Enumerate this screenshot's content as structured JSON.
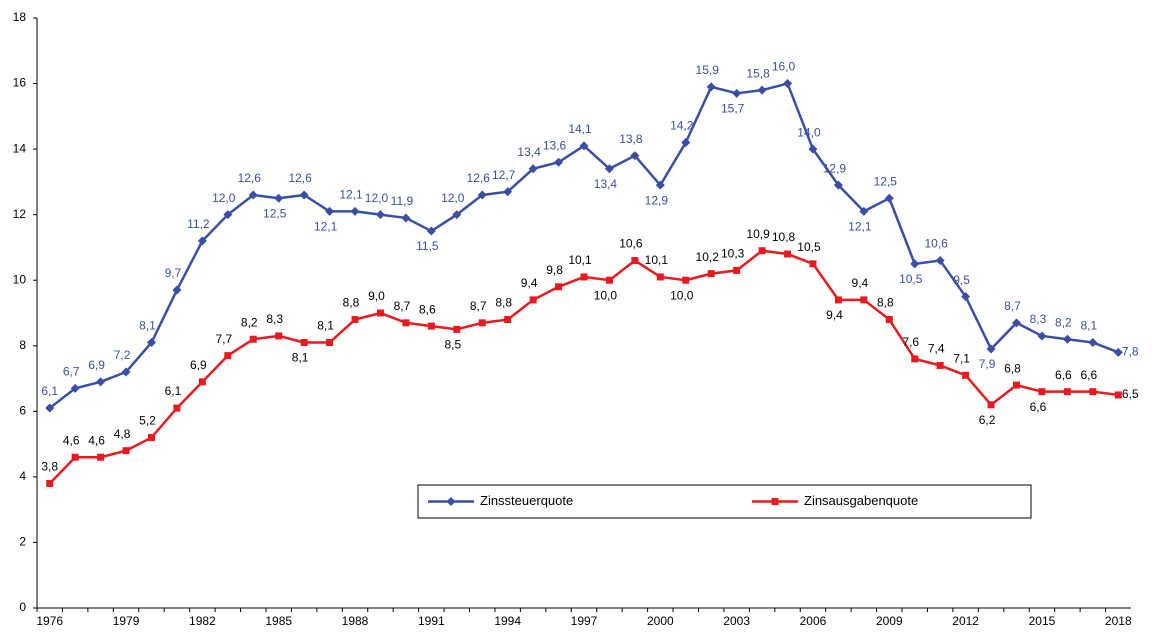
{
  "chart_data": {
    "type": "line",
    "categories": [
      "1976",
      null,
      null,
      "1979",
      null,
      null,
      "1982",
      null,
      null,
      "1985",
      null,
      null,
      "1988",
      null,
      null,
      "1991",
      null,
      null,
      "1994",
      null,
      null,
      "1997",
      null,
      null,
      "2000",
      null,
      null,
      "2003",
      null,
      null,
      "2006",
      null,
      null,
      "2009",
      null,
      null,
      "2012",
      null,
      null,
      "2015",
      null,
      null,
      "2018"
    ],
    "series": [
      {
        "name": "Zinssteuerquote",
        "color": "#3a4fa3",
        "marker": "diamond",
        "values": [
          6.1,
          6.7,
          6.9,
          7.2,
          8.1,
          9.7,
          11.2,
          12.0,
          12.6,
          12.5,
          12.6,
          12.1,
          12.1,
          12.0,
          11.9,
          11.5,
          12.0,
          12.6,
          12.7,
          13.4,
          13.6,
          14.1,
          13.4,
          13.8,
          12.9,
          14.2,
          15.9,
          15.7,
          15.8,
          16.0,
          14.0,
          12.9,
          12.1,
          12.5,
          10.5,
          10.6,
          9.5,
          7.9,
          8.7,
          8.3,
          8.2,
          8.1,
          7.8
        ],
        "value_labels": [
          "6,1",
          "6,7",
          "6,9",
          "7,2",
          "8,1",
          "9,7",
          "11,2",
          "12,0",
          "12,6",
          "12,5",
          "12,6",
          "12,1",
          "12,1",
          "12,0",
          "11,9",
          "11,5",
          "12,0",
          "12,6",
          "12,7",
          "13,4",
          "13,6",
          "14,1",
          "13,4",
          "13,8",
          "12,9",
          "14,2",
          "15,9",
          "15,7",
          "15,8",
          "16,0",
          "14,0",
          "12,9",
          "12,1",
          "12,5",
          "10,5",
          "10,6",
          "9,5",
          "7,9",
          "8,7",
          "8,3",
          "8,2",
          "8,1",
          "7,8"
        ]
      },
      {
        "name": "Zinsausgabenquote",
        "color": "#e8191f",
        "marker": "square",
        "values": [
          3.8,
          4.6,
          4.6,
          4.8,
          5.2,
          6.1,
          6.9,
          7.7,
          8.2,
          8.3,
          8.1,
          8.1,
          8.8,
          9.0,
          8.7,
          8.6,
          8.5,
          8.7,
          8.8,
          9.4,
          9.8,
          10.1,
          10.0,
          10.6,
          10.1,
          10.0,
          10.2,
          10.3,
          10.9,
          10.8,
          10.5,
          9.4,
          9.4,
          8.8,
          7.6,
          7.4,
          7.1,
          6.2,
          6.8,
          6.6,
          6.6,
          6.6,
          6.5
        ],
        "value_labels": [
          "3,8",
          "4,6",
          "4,6",
          "4,8",
          "5,2",
          "6,1",
          "6,9",
          "7,7",
          "8,2",
          "8,3",
          "8,1",
          "8,1",
          "8,8",
          "9,0",
          "8,7",
          "8,6",
          "8,5",
          "8,7",
          "8,8",
          "9,4",
          "9,8",
          "10,1",
          "10,0",
          "10,6",
          "10,1",
          "10,0",
          "10,2",
          "10,3",
          "10,9",
          "10,8",
          "10,5",
          "9,4",
          "9,4",
          "8,8",
          "7,6",
          "7,4",
          "7,1",
          "6,2",
          "6,8",
          "6,6",
          "6,6",
          "6,6",
          "6,5"
        ]
      }
    ],
    "ylim": [
      0,
      18
    ],
    "yticks": [
      0,
      2,
      4,
      6,
      8,
      10,
      12,
      14,
      16,
      18
    ]
  }
}
